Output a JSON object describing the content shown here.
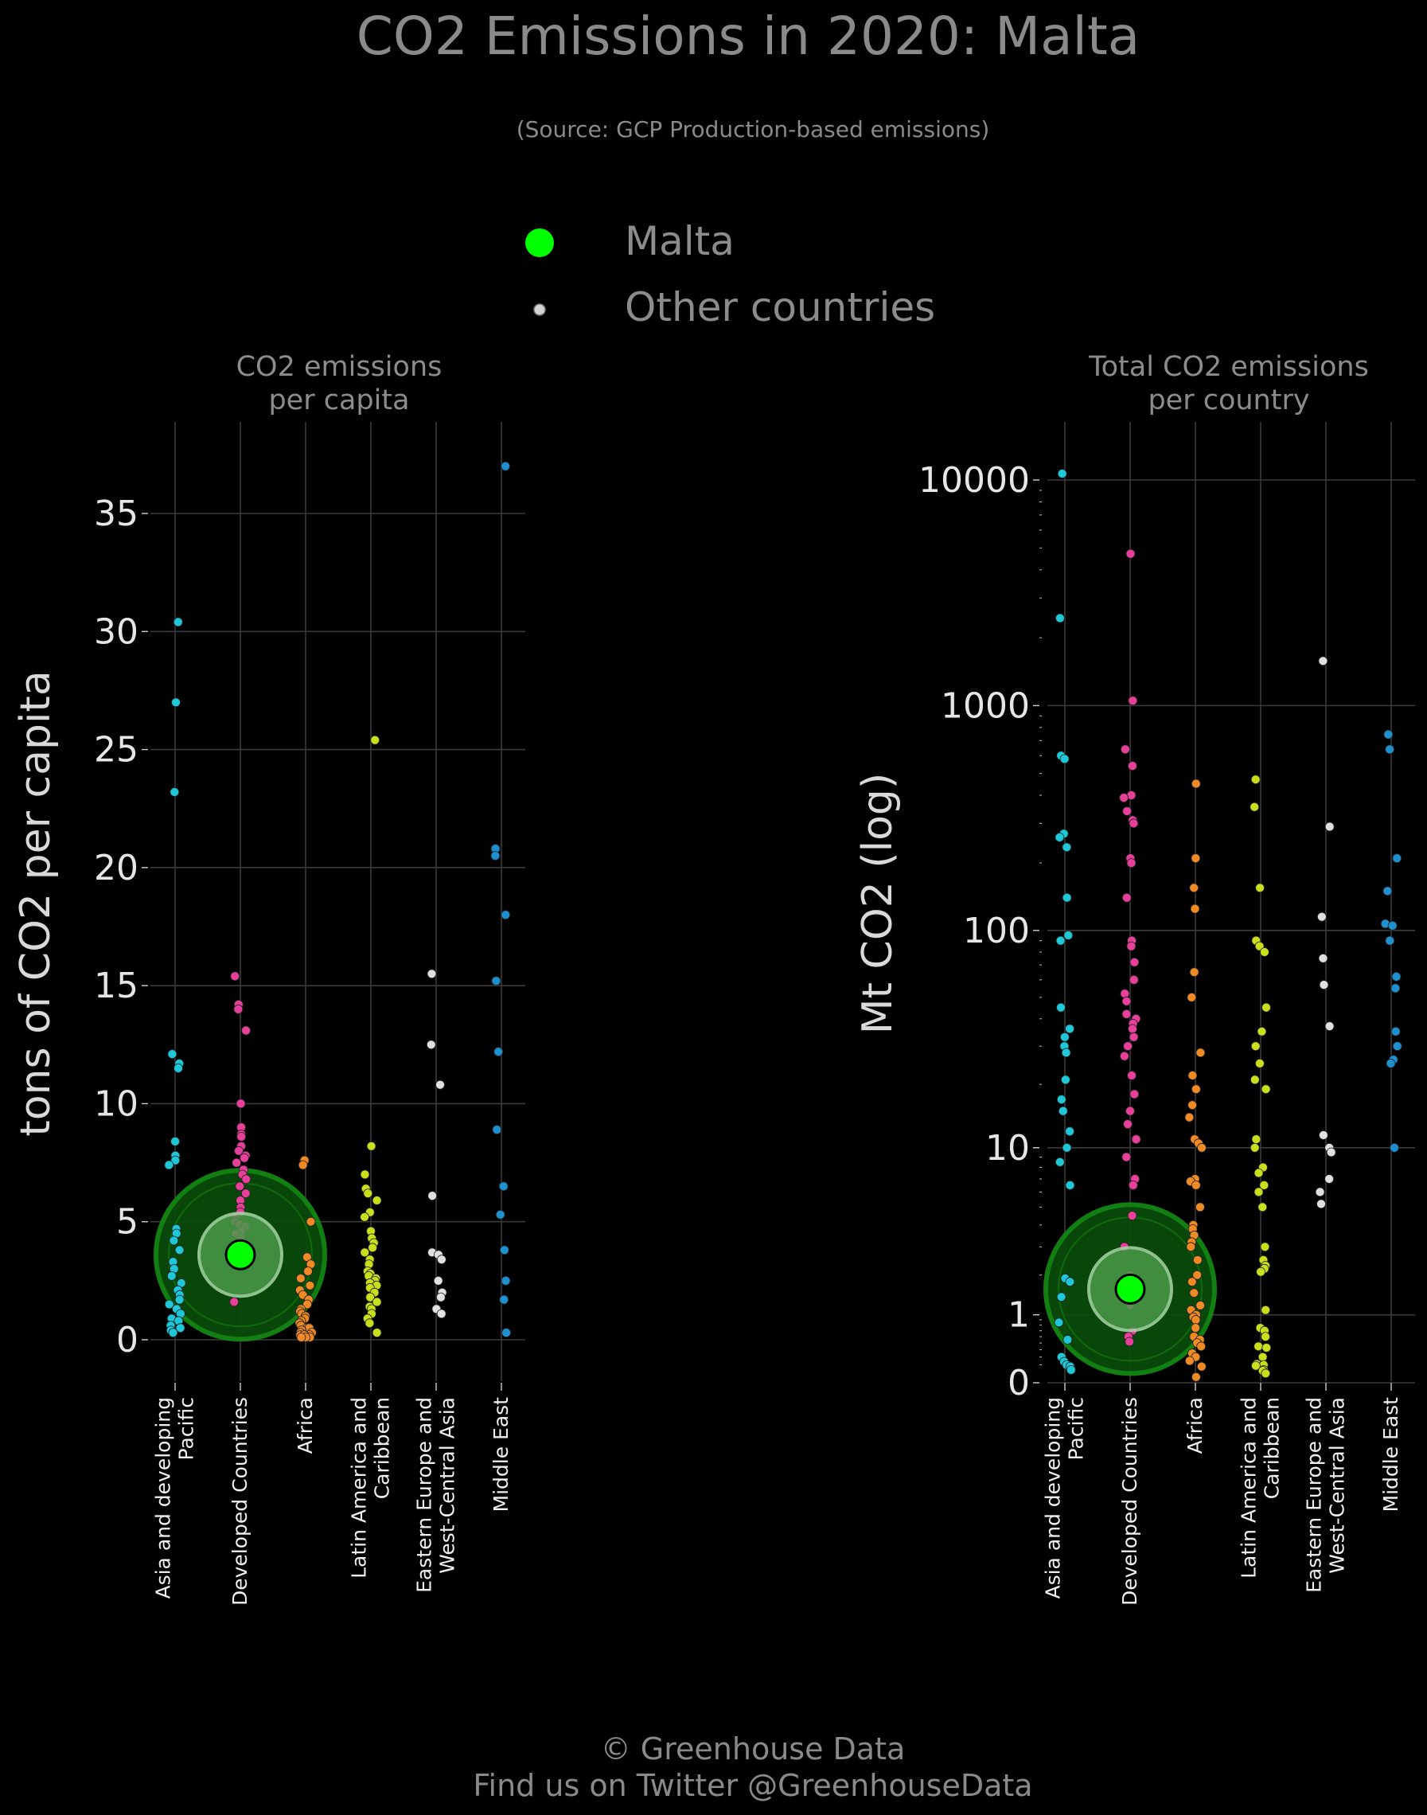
{
  "title": "CO2 Emissions in 2020: Malta",
  "subtitle": "(Source: GCP Production-based emissions)",
  "legend": {
    "items": [
      {
        "label": "Malta",
        "color": "#00ff00",
        "marker": "large-circle"
      },
      {
        "label": "Other countries",
        "color": "#d3d3d3",
        "marker": "small-circle"
      }
    ]
  },
  "footer": {
    "line1": "© Greenhouse Data",
    "line2": "Find us on Twitter @GreenhouseData"
  },
  "colors": {
    "background": "#000000",
    "highlight": "#00ff00",
    "highlight_halo": "#0a5c0a",
    "Asia and developing Pacific": "#1ec8d8",
    "Developed Countries": "#e8409a",
    "Africa": "#f08a24",
    "Latin America and Caribbean": "#c9df1c",
    "Eastern Europe and West-Central Asia": "#e0e0e0",
    "Middle East": "#1e90d0"
  },
  "chart_data": [
    {
      "type": "scatter",
      "subtype": "strip",
      "panel_title_lines": [
        "CO2 emissions",
        "per capita"
      ],
      "ylabel": "tons of CO2 per capita",
      "yscale": "linear",
      "ylim": [
        -1.5,
        39
      ],
      "yticks": [
        0,
        5,
        10,
        15,
        20,
        25,
        30,
        35
      ],
      "ytick_labels": [
        "0",
        "5",
        "10",
        "15",
        "20",
        "25",
        "30",
        "35"
      ],
      "grid": true,
      "categories": [
        "Asia and developing Pacific",
        "Developed Countries",
        "Africa",
        "Latin America and Caribbean",
        "Eastern Europe and West-Central Asia",
        "Middle East"
      ],
      "category_label_lines": [
        [
          "Asia and developing",
          "Pacific"
        ],
        [
          "Developed Countries"
        ],
        [
          "Africa"
        ],
        [
          "Latin America and",
          "Caribbean"
        ],
        [
          "Eastern Europe and",
          "West-Central Asia"
        ],
        [
          "Middle East"
        ]
      ],
      "highlight": {
        "label": "Malta",
        "category": "Developed Countries",
        "value": 3.6
      },
      "series": [
        {
          "category": "Asia and developing Pacific",
          "values": [
            30.4,
            27.0,
            23.2,
            12.1,
            11.7,
            11.5,
            8.4,
            7.8,
            7.6,
            7.4,
            4.7,
            4.5,
            4.2,
            3.8,
            3.3,
            3.0,
            2.7,
            2.4,
            2.1,
            1.9,
            1.7,
            1.5,
            1.3,
            1.1,
            0.9,
            0.8,
            0.6,
            0.5,
            0.4,
            0.3
          ]
        },
        {
          "category": "Developed Countries",
          "values": [
            15.4,
            14.2,
            14.0,
            13.1,
            10.0,
            9.0,
            8.7,
            8.6,
            8.2,
            8.0,
            7.8,
            7.7,
            7.5,
            7.2,
            7.0,
            6.8,
            6.5,
            6.2,
            5.9,
            5.6,
            5.4,
            5.2,
            5.0,
            4.9,
            4.8,
            4.6,
            4.5,
            4.3,
            4.1,
            1.6
          ]
        },
        {
          "category": "Africa",
          "values": [
            7.6,
            7.4,
            5.0,
            3.5,
            3.2,
            2.9,
            2.6,
            2.3,
            2.1,
            1.9,
            1.7,
            1.5,
            1.3,
            1.2,
            1.1,
            1.0,
            0.9,
            0.8,
            0.7,
            0.6,
            0.5,
            0.5,
            0.4,
            0.4,
            0.3,
            0.3,
            0.2,
            0.2,
            0.2,
            0.1,
            0.1,
            0.1,
            0.1
          ]
        },
        {
          "category": "Latin America and Caribbean",
          "values": [
            25.4,
            8.2,
            7.0,
            6.4,
            6.2,
            5.9,
            5.4,
            5.2,
            4.6,
            4.3,
            4.1,
            3.9,
            3.7,
            3.4,
            3.2,
            2.9,
            2.8,
            2.7,
            2.6,
            2.5,
            2.4,
            2.3,
            2.2,
            2.0,
            1.8,
            1.6,
            1.4,
            1.3,
            1.1,
            0.9,
            0.7,
            0.3
          ]
        },
        {
          "category": "Eastern Europe and West-Central Asia",
          "values": [
            15.5,
            12.5,
            10.8,
            6.1,
            3.7,
            3.6,
            3.4,
            2.5,
            2.0,
            1.8,
            1.3,
            1.1
          ]
        },
        {
          "category": "Middle East",
          "values": [
            37.0,
            20.8,
            20.5,
            18.0,
            15.2,
            12.2,
            8.9,
            6.5,
            5.3,
            3.8,
            2.5,
            1.7,
            0.3
          ]
        }
      ]
    },
    {
      "type": "scatter",
      "subtype": "strip",
      "panel_title_lines": [
        "Total CO2 emissions",
        "per country"
      ],
      "ylabel": "Mt CO2 (log)",
      "yscale": "log10(1+x)",
      "ylim": [
        0,
        20000
      ],
      "yticks": [
        0,
        1,
        10,
        100,
        1000,
        10000
      ],
      "ytick_labels": [
        "0",
        "1",
        "10",
        "100",
        "1000",
        "10000"
      ],
      "grid": true,
      "categories": [
        "Asia and developing Pacific",
        "Developed Countries",
        "Africa",
        "Latin America and Caribbean",
        "Eastern Europe and West-Central Asia",
        "Middle East"
      ],
      "category_label_lines": [
        [
          "Asia and developing",
          "Pacific"
        ],
        [
          "Developed Countries"
        ],
        [
          "Africa"
        ],
        [
          "Latin America and",
          "Caribbean"
        ],
        [
          "Eastern Europe and",
          "West-Central Asia"
        ],
        [
          "Middle East"
        ]
      ],
      "highlight": {
        "label": "Malta",
        "category": "Developed Countries",
        "value": 1.6
      },
      "series": [
        {
          "category": "Asia and developing Pacific",
          "values": [
            10668,
            2442,
            600,
            580,
            270,
            260,
            235,
            140,
            95,
            90,
            45,
            36,
            33,
            30,
            28,
            21,
            17,
            15,
            12,
            10,
            8.5,
            6.5,
            1.9,
            1.8,
            1.4,
            0.85,
            0.55,
            0.3,
            0.24,
            0.2,
            0.18,
            0.14
          ]
        },
        {
          "category": "Developed Countries",
          "values": [
            4713,
            1052,
            640,
            540,
            400,
            390,
            340,
            310,
            300,
            210,
            200,
            140,
            90,
            85,
            72,
            60,
            52,
            48,
            42,
            40,
            38,
            36,
            33,
            30,
            27,
            22,
            18,
            15,
            13,
            11,
            9,
            7,
            6.5,
            4.5,
            3,
            2,
            1.2,
            0.7,
            0.6,
            0.52
          ]
        },
        {
          "category": "Africa",
          "values": [
            450,
            210,
            155,
            125,
            65,
            50,
            28,
            22,
            19,
            16,
            14,
            11,
            10.5,
            10,
            7,
            6.8,
            6.5,
            5,
            4,
            3.8,
            3.5,
            3.2,
            3,
            2.5,
            2,
            1.8,
            1.5,
            1.2,
            1.1,
            1.0,
            0.95,
            0.9,
            0.75,
            0.6,
            0.55,
            0.5,
            0.45,
            0.35,
            0.3,
            0.25,
            0.18,
            0.06
          ]
        },
        {
          "category": "Latin America and Caribbean",
          "values": [
            470,
            355,
            155,
            90,
            85,
            80,
            45,
            35,
            30,
            25,
            21,
            19,
            11,
            10,
            8,
            7.5,
            6.5,
            6,
            5,
            3,
            2.5,
            2.3,
            2.2,
            2.1,
            1.1,
            0.75,
            0.7,
            0.6,
            0.45,
            0.43,
            0.3,
            0.21,
            0.2,
            0.19,
            0.14,
            0.13,
            0.1
          ]
        },
        {
          "category": "Eastern Europe and West-Central Asia",
          "values": [
            1577,
            290,
            115,
            75,
            57,
            37,
            11.5,
            10,
            9.5,
            7,
            6,
            5.2
          ]
        },
        {
          "category": "Middle East",
          "values": [
            745,
            640,
            210,
            150,
            107,
            105,
            90,
            62,
            55,
            35,
            30,
            26,
            25,
            10
          ]
        }
      ]
    }
  ]
}
